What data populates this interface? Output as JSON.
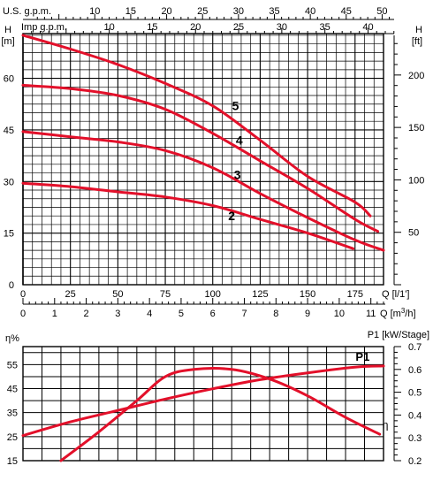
{
  "colors": {
    "curve": "#e3102a",
    "grid": "#000000",
    "axis": "#000000",
    "background": "#ffffff"
  },
  "chart_data": [
    {
      "type": "line",
      "name_hint": "head-curves",
      "labels": {
        "us_gpm": "U.S. g.p.m.",
        "imp_gpm": "Imp g.p.m.",
        "h_left": "H",
        "h_right": "H",
        "m_unit": "[m]",
        "ft_unit": "[ft]",
        "q_ls": "Q [l/1']",
        "q_m3h_prefix": "Q [m",
        "q_m3h_sup": "3",
        "q_m3h_suffix": "/h]"
      },
      "x_ls_ticks": [
        0,
        25,
        50,
        75,
        100,
        125,
        150,
        175
      ],
      "x_m3h_ticks": [
        0,
        1,
        2,
        3,
        4,
        5,
        6,
        7,
        8,
        9,
        10,
        11
      ],
      "x_usgpm_ticks": [
        10,
        15,
        20,
        25,
        30,
        35,
        40,
        45,
        50
      ],
      "x_impgpm_ticks": [
        10,
        15,
        20,
        25,
        30,
        35,
        40
      ],
      "y_m_ticks": [
        0,
        15,
        30,
        45,
        60
      ],
      "y_ft_ticks": [
        50,
        100,
        150,
        200
      ],
      "xlim_ls": [
        0,
        190
      ],
      "ylim_m": [
        0,
        73
      ],
      "grid": true,
      "series": [
        {
          "name": "5",
          "x": [
            0,
            25,
            50,
            75,
            100,
            125,
            150,
            175,
            183
          ],
          "y": [
            72.5,
            68.5,
            64,
            58.5,
            52,
            42,
            31.5,
            24,
            20
          ]
        },
        {
          "name": "4",
          "x": [
            0,
            25,
            50,
            75,
            100,
            125,
            150,
            175,
            187
          ],
          "y": [
            58,
            57,
            55,
            51,
            44,
            36,
            28,
            19,
            15.5
          ]
        },
        {
          "name": "3",
          "x": [
            0,
            25,
            50,
            75,
            100,
            125,
            150,
            175,
            190
          ],
          "y": [
            44.5,
            43,
            41.5,
            39,
            34,
            26.5,
            19.5,
            13,
            10
          ]
        },
        {
          "name": "2",
          "x": [
            0,
            25,
            50,
            75,
            100,
            125,
            150,
            174
          ],
          "y": [
            29.5,
            28.5,
            27,
            25.5,
            23,
            19,
            15,
            10.5
          ]
        }
      ]
    },
    {
      "type": "line",
      "name_hint": "efficiency-power",
      "labels": {
        "eta": "η%",
        "p1": "P1 [kW/Stage]",
        "eta_curve": "η",
        "p1_curve": "P1"
      },
      "y_eta_ticks": [
        15,
        25,
        35,
        45,
        55
      ],
      "y_p1_ticks": [
        0.2,
        0.3,
        0.4,
        0.5,
        0.6,
        0.7
      ],
      "ylim_eta": [
        15,
        62.5
      ],
      "ylim_p1": [
        0.2,
        0.7
      ],
      "xlim_ls": [
        0,
        190
      ],
      "grid": true,
      "series": [
        {
          "name": "η",
          "axis": "left",
          "x": [
            20,
            40,
            60,
            75,
            90,
            110,
            130,
            150,
            170,
            188
          ],
          "y": [
            15,
            27,
            40,
            50,
            53,
            53,
            49,
            42,
            33,
            26
          ]
        },
        {
          "name": "P1",
          "axis": "right",
          "x": [
            0,
            25,
            50,
            75,
            100,
            125,
            150,
            175,
            190
          ],
          "y": [
            0.31,
            0.37,
            0.42,
            0.47,
            0.515,
            0.555,
            0.585,
            0.61,
            0.615
          ]
        }
      ]
    }
  ]
}
